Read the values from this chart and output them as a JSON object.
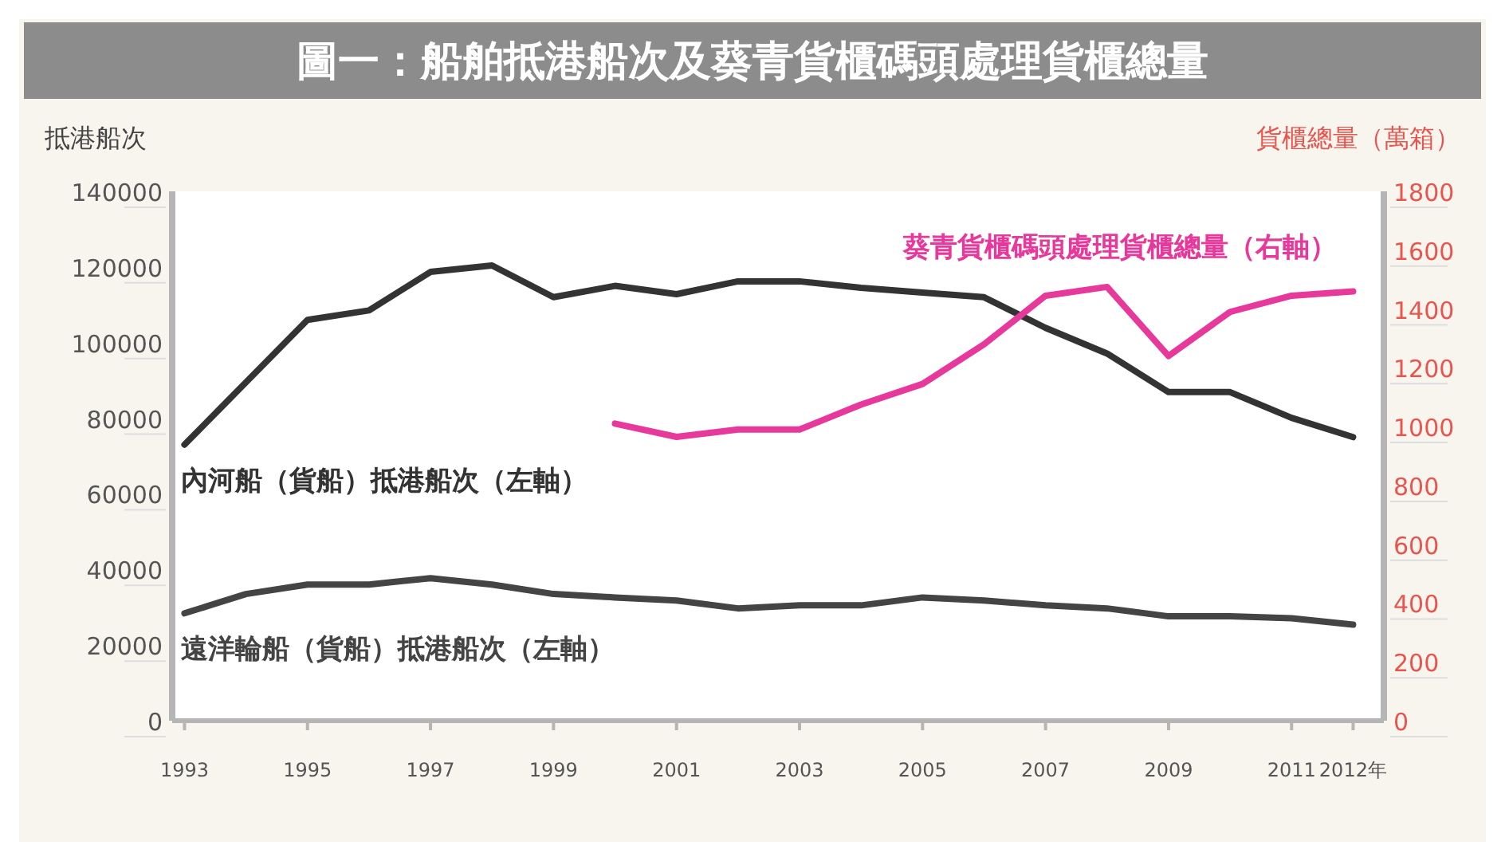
{
  "chart_data": {
    "type": "line",
    "title": "圖一：船舶抵港船次及葵青貨櫃碼頭處理貨櫃總量",
    "ylabel": "抵港船次",
    "y2label": "貨櫃總量（萬箱）",
    "x": [
      1993,
      1994,
      1995,
      1996,
      1997,
      1998,
      1999,
      2000,
      2001,
      2002,
      2003,
      2004,
      2005,
      2006,
      2007,
      2008,
      2009,
      2010,
      2011,
      2012
    ],
    "xlim": [
      1992.8,
      2012.5
    ],
    "xticks": [
      1993,
      1995,
      1997,
      1999,
      2001,
      2003,
      2005,
      2007,
      2009,
      2011,
      {
        "value": 2012,
        "label": "2012年"
      }
    ],
    "ylim": [
      0,
      140000
    ],
    "yticks": [
      0,
      20000,
      40000,
      60000,
      80000,
      100000,
      120000,
      140000
    ],
    "y2lim": [
      0,
      1800
    ],
    "y2ticks": [
      0,
      200,
      400,
      600,
      800,
      1000,
      1200,
      1400,
      1600,
      1800
    ],
    "legend": false,
    "series": [
      {
        "name": "內河船（貨船）抵港船次（左軸）",
        "color": "#333333",
        "values": [
          73000,
          89500,
          106000,
          108500,
          118700,
          120400,
          112000,
          115000,
          112800,
          116200,
          116200,
          114500,
          113200,
          112000,
          103900,
          97100,
          86900,
          86900,
          80100,
          75000
        ]
      },
      {
        "name": "遠洋輪船（貨船）抵港船次（左軸）",
        "color": "#444444",
        "values": [
          28400,
          33500,
          36000,
          36000,
          37700,
          36000,
          33500,
          32600,
          31800,
          29700,
          30500,
          30500,
          32600,
          31800,
          30500,
          29700,
          27600,
          27600,
          27100,
          25400
        ]
      },
      {
        "name": "葵青貨櫃碼頭處理貨櫃總量（右軸）",
        "color": "#e6399b",
        "axis": "y2",
        "values": [
          null,
          null,
          null,
          null,
          null,
          null,
          null,
          1010,
          965,
          990,
          990,
          1075,
          1145,
          1280,
          1445,
          1475,
          1240,
          1390,
          1445,
          1460
        ]
      }
    ]
  }
}
